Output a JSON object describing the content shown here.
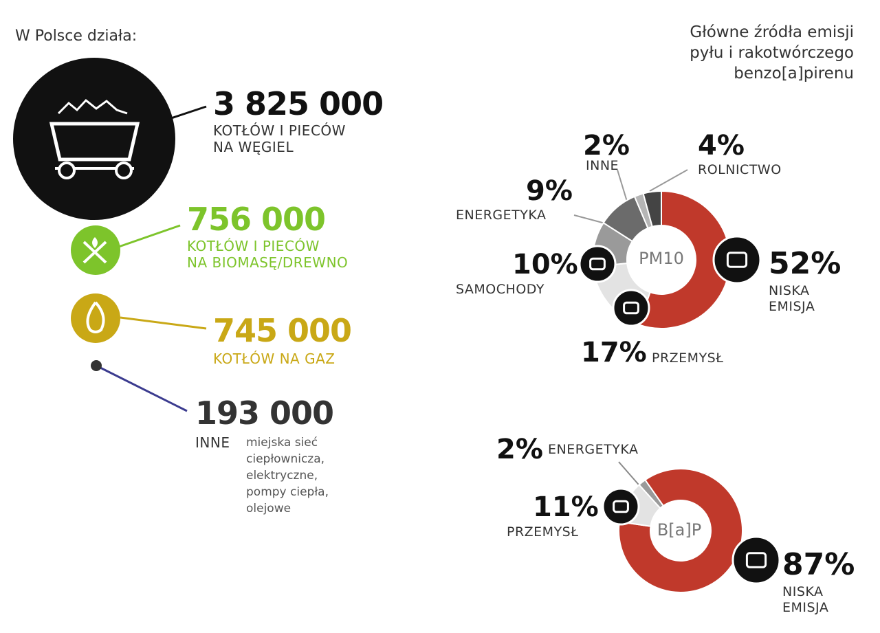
{
  "left": {
    "title": "W Polsce działa:",
    "items": [
      {
        "value": "3 825 000",
        "line1": "KOTŁÓW I PIECÓW",
        "line2": "NA WĘGIEL",
        "color": "#111111",
        "icon": "coal-cart-icon"
      },
      {
        "value": "756 000",
        "line1": "KOTŁÓW I PIECÓW",
        "line2": "NA BIOMASĘ/DREWNO",
        "color": "#7dc42b",
        "icon": "wood-fire-icon"
      },
      {
        "value": "745 000",
        "line1": "KOTŁÓW NA GAZ",
        "color": "#c9a816",
        "icon": "gas-flame-icon"
      },
      {
        "value": "193 000",
        "line1": "INNE",
        "note": [
          "miejska sieć",
          "ciepłownicza,",
          "elektryczne,",
          "pompy ciepła,",
          "olejowe"
        ],
        "color": "#3b3b8f"
      }
    ]
  },
  "right": {
    "title": [
      "Główne źródła emisji",
      "pyłu i rakotwórczego",
      "benzo[a]pirenu"
    ]
  },
  "chart_data": [
    {
      "type": "pie",
      "center_label": "PM10",
      "categories": [
        "NISKA EMISJA",
        "PRZEMYSŁ",
        "SAMOCHODY",
        "ENERGETYKA",
        "INNE",
        "ROLNICTWO"
      ],
      "values": [
        52,
        17,
        10,
        9,
        2,
        4
      ],
      "labels": [
        "52%",
        "17%",
        "10%",
        "9%",
        "2%",
        "4%"
      ],
      "colors": [
        "#c0392b",
        "#e3e3e3",
        "#9a9a9a",
        "#6b6b6b",
        "#b5b5b5",
        "#444444"
      ]
    },
    {
      "type": "pie",
      "center_label": "B[a]P",
      "categories": [
        "NISKA EMISJA",
        "PRZEMYSŁ",
        "ENERGETYKA"
      ],
      "values": [
        87,
        11,
        2
      ],
      "labels": [
        "87%",
        "11%",
        "2%"
      ],
      "colors": [
        "#c0392b",
        "#e3e3e3",
        "#9a9a9a"
      ]
    }
  ]
}
